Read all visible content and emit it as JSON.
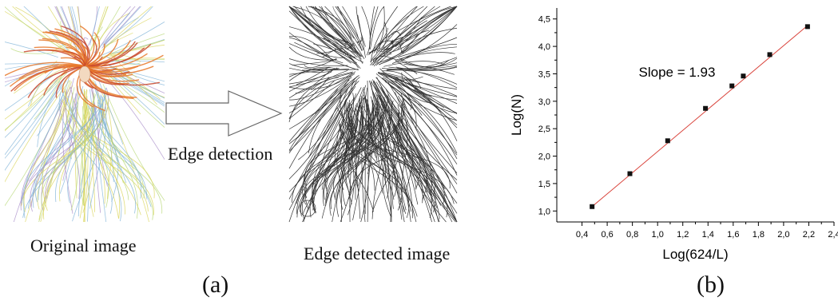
{
  "figure": {
    "panel_a": {
      "label": "(a)",
      "original_caption": "Original image",
      "arrow_caption": "Edge detection",
      "edge_caption": "Edge detected image"
    },
    "panel_b": {
      "label": "(b)"
    }
  },
  "colors": {
    "fit_line": "#d9423a",
    "marker": "#111111",
    "hair_orange": "#e8782a",
    "hair_red": "#c8462a",
    "sketch_yellow": "#d9d45a",
    "sketch_blue": "#7fb3d8",
    "sketch_purple": "#a88cc8"
  },
  "chart_data": {
    "type": "scatter",
    "xlabel": "Log(624/L)",
    "ylabel": "Log(N)",
    "annotation": "Slope = 1.93",
    "xlim": [
      0.2,
      2.4
    ],
    "ylim": [
      0.8,
      4.7
    ],
    "xticks": [
      "0,4",
      "0,6",
      "0,8",
      "1,0",
      "1,2",
      "1,4",
      "1,6",
      "1,8",
      "2,0",
      "2,2",
      "2,4"
    ],
    "xtick_values": [
      0.4,
      0.6,
      0.8,
      1.0,
      1.2,
      1.4,
      1.6,
      1.8,
      2.0,
      2.2,
      2.4
    ],
    "yticks": [
      "1,0",
      "1,5",
      "2,0",
      "2,5",
      "3,0",
      "3,5",
      "4,0",
      "4,5"
    ],
    "ytick_values": [
      1.0,
      1.5,
      2.0,
      2.5,
      3.0,
      3.5,
      4.0,
      4.5
    ],
    "series": [
      {
        "x": [
          0.48,
          0.78,
          1.08,
          1.38,
          1.59,
          1.68,
          1.89,
          2.19
        ],
        "y": [
          1.08,
          1.68,
          2.28,
          2.87,
          3.28,
          3.46,
          3.85,
          4.36
        ]
      }
    ],
    "fit_line": {
      "x": [
        0.48,
        2.19
      ],
      "y": [
        1.08,
        4.38
      ]
    }
  }
}
